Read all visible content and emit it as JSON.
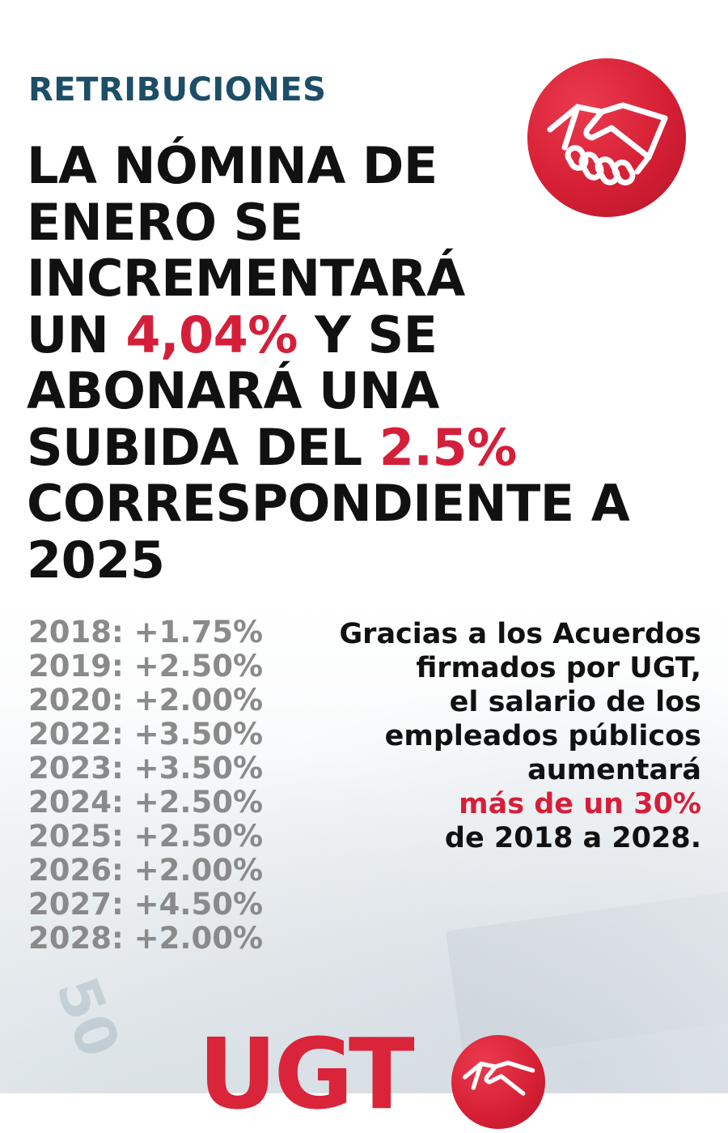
{
  "section": "RETRIBUCIONES",
  "headline": {
    "l1": "LA NÓMINA DE",
    "l2": "ENERO SE",
    "l3": "INCREMENTARÁ",
    "l4_pre": "UN ",
    "l4_red": "4,04%",
    "l4_post": " Y SE",
    "l5": "ABONARÁ UNA",
    "l6_pre": "SUBIDA DEL ",
    "l6_red": "2.5%",
    "l7": "CORRESPONDIENTE A",
    "l8": "2025"
  },
  "increments": [
    "2018: +1.75%",
    "2019: +2.50%",
    "2020: +2.00%",
    "2022: +3.50%",
    "2023: +3.50%",
    "2024: +2.50%",
    "2025: +2.50%",
    "2026: +2.00%",
    "2027: +4.50%",
    "2028: +2.00%"
  ],
  "side_text": {
    "l1": "Gracias a los Acuerdos",
    "l2": "firmados por UGT,",
    "l3": "el salario de los",
    "l4": "empleados públicos",
    "l5": "aumentará",
    "l6_red": "más de un 30%",
    "l7": "de 2018 a 2028."
  },
  "footer_logo": "UGT",
  "background_note_value": "50",
  "icons": {
    "top_logo": "handshake-icon",
    "footer_logo": "handshake-icon"
  },
  "colors": {
    "accent_red": "#d51f3a",
    "section_blue": "#1c4e67",
    "text_dark": "#111111",
    "text_gray": "#8a8a8a"
  }
}
